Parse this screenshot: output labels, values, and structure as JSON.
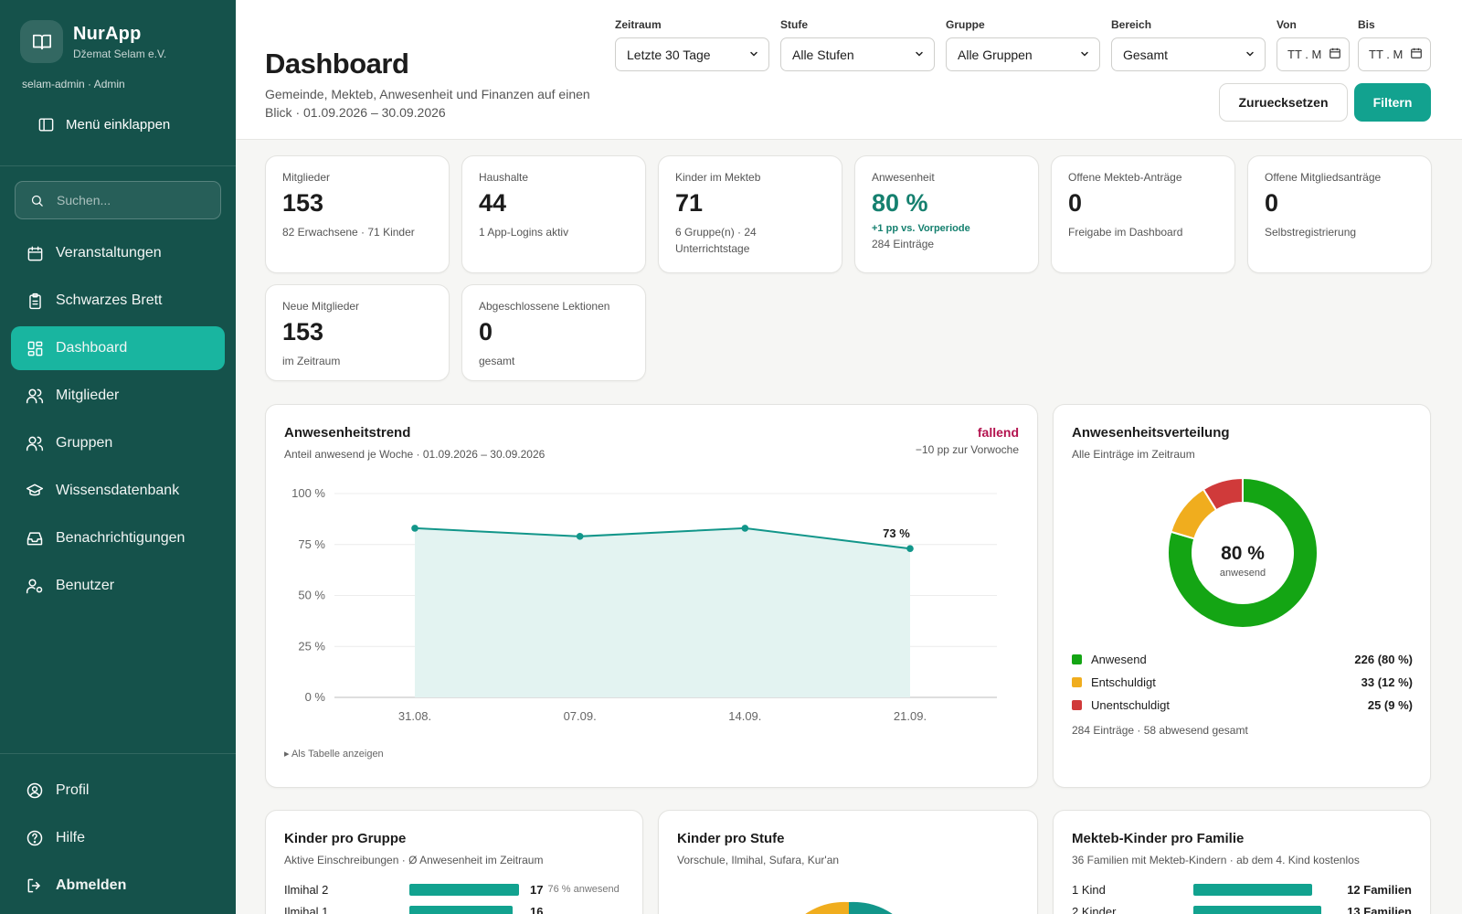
{
  "app": {
    "name": "NurApp",
    "org": "Džemat Selam e.V.",
    "user_line": "selam-admin · Admin",
    "collapse_label": "Menü einklappen"
  },
  "search": {
    "placeholder": "Suchen..."
  },
  "nav": {
    "items": [
      {
        "label": "Veranstaltungen",
        "icon": "calendar-icon"
      },
      {
        "label": "Schwarzes Brett",
        "icon": "clipboard-icon"
      },
      {
        "label": "Dashboard",
        "icon": "dashboard-grid-icon",
        "active": true
      },
      {
        "label": "Mitglieder",
        "icon": "users-icon"
      },
      {
        "label": "Gruppen",
        "icon": "users-icon"
      },
      {
        "label": "Wissensdatenbank",
        "icon": "graduation-cap-icon"
      },
      {
        "label": "Benachrichtigungen",
        "icon": "inbox-icon"
      },
      {
        "label": "Benutzer",
        "icon": "user-gear-icon"
      }
    ],
    "bottom": [
      {
        "label": "Profil",
        "icon": "user-circle-icon"
      },
      {
        "label": "Hilfe",
        "icon": "help-circle-icon"
      },
      {
        "label": "Abmelden",
        "icon": "logout-icon"
      }
    ]
  },
  "header": {
    "title": "Dashboard",
    "subtitle": "Gemeinde, Mekteb, Anwesenheit und Finanzen auf einen Blick · 01.09.2026 – 30.09.2026",
    "filters": {
      "zeitraum": {
        "label": "Zeitraum",
        "value": "Letzte 30 Tage"
      },
      "stufe": {
        "label": "Stufe",
        "value": "Alle Stufen"
      },
      "gruppe": {
        "label": "Gruppe",
        "value": "Alle Gruppen"
      },
      "bereich": {
        "label": "Bereich",
        "value": "Gesamt"
      },
      "von": {
        "label": "Von",
        "placeholder": "TT . MM"
      },
      "bis": {
        "label": "Bis",
        "placeholder": "TT . MM"
      }
    },
    "reset_label": "Zuruecksetzen",
    "filter_label": "Filtern"
  },
  "kpis": [
    {
      "label": "Mitglieder",
      "value": "153",
      "sub": "82 Erwachsene · 71 Kinder"
    },
    {
      "label": "Haushalte",
      "value": "44",
      "sub": "1 App-Logins aktiv"
    },
    {
      "label": "Kinder im Mekteb",
      "value": "71",
      "sub": "6 Gruppe(n) · 24 Unterrichtstage"
    },
    {
      "label": "Anwesenheit",
      "value": "80 %",
      "delta": "+1 pp vs. Vorperiode",
      "sub": "284 Einträge"
    },
    {
      "label": "Offene Mekteb-Anträge",
      "value": "0",
      "sub": "Freigabe im Dashboard"
    },
    {
      "label": "Offene Mitgliedsanträge",
      "value": "0",
      "sub": "Selbstregistrierung"
    },
    {
      "label": "Neue Mitglieder",
      "value": "153",
      "sub": "im Zeitraum"
    },
    {
      "label": "Abgeschlossene Lektionen",
      "value": "0",
      "sub": "gesamt"
    }
  ],
  "trend_panel": {
    "title": "Anwesenheitstrend",
    "subtitle": "Anteil anwesend je Woche · 01.09.2026 – 30.09.2026",
    "status": "fallend",
    "delta": "−10 pp zur Vorwoche",
    "table_toggle": "▸ Als Tabelle anzeigen"
  },
  "distribution_panel": {
    "title": "Anwesenheitsverteilung",
    "subtitle": "Alle Einträge im Zeitraum",
    "center_value": "80 %",
    "center_label": "anwesend",
    "legend": [
      {
        "label": "Anwesend",
        "value": "226 (80 %)",
        "color": "#14a514"
      },
      {
        "label": "Entschuldigt",
        "value": "33 (12 %)",
        "color": "#f0ad1e"
      },
      {
        "label": "Unentschuldigt",
        "value": "25 (9 %)",
        "color": "#d03a3a"
      }
    ],
    "footer": "284 Einträge · 58 abwesend gesamt"
  },
  "groups_panel": {
    "title": "Kinder pro Gruppe",
    "subtitle": "Aktive Einschreibungen · Ø Anwesenheit im Zeitraum",
    "rows": [
      {
        "label": "Ilmihal 2",
        "count": "17",
        "percent": "76 % anwesend",
        "fill": 1.0
      },
      {
        "label": "Ilmihal 1",
        "count": "16",
        "percent": "",
        "fill": 0.94
      }
    ]
  },
  "levels_panel": {
    "title": "Kinder pro Stufe",
    "subtitle": "Vorschule, Ilmihal, Sufara, Kur'an"
  },
  "families_panel": {
    "title": "Mekteb-Kinder pro Familie",
    "subtitle": "36 Familien mit Mekteb-Kindern · ab dem 4. Kind kostenlos",
    "rows": [
      {
        "label": "1 Kind",
        "value": "12 Familien",
        "fill": 0.93
      },
      {
        "label": "2 Kinder",
        "value": "13 Familien",
        "fill": 1.0
      }
    ]
  },
  "chart_data": [
    {
      "type": "area",
      "title": "Anwesenheitstrend",
      "categories": [
        "31.08.",
        "07.09.",
        "14.09.",
        "21.09."
      ],
      "series": [
        {
          "values": [
            83,
            79,
            83,
            73
          ]
        }
      ],
      "ylim": [
        0,
        100
      ],
      "yticks": [
        "0 %",
        "25 %",
        "50 %",
        "75 %",
        "100 %"
      ],
      "last_label": "73 %",
      "grid": true,
      "color": "#12968a"
    },
    {
      "type": "pie",
      "title": "Anwesenheitsverteilung",
      "categories": [
        "Anwesend",
        "Entschuldigt",
        "Unentschuldigt"
      ],
      "values": [
        226,
        33,
        25
      ],
      "colors": [
        "#14a514",
        "#f0ad1e",
        "#d03a3a"
      ]
    },
    {
      "type": "pie",
      "title": "Kinder pro Stufe",
      "colors": [
        "#12968a",
        "#f0ad1e"
      ]
    }
  ]
}
